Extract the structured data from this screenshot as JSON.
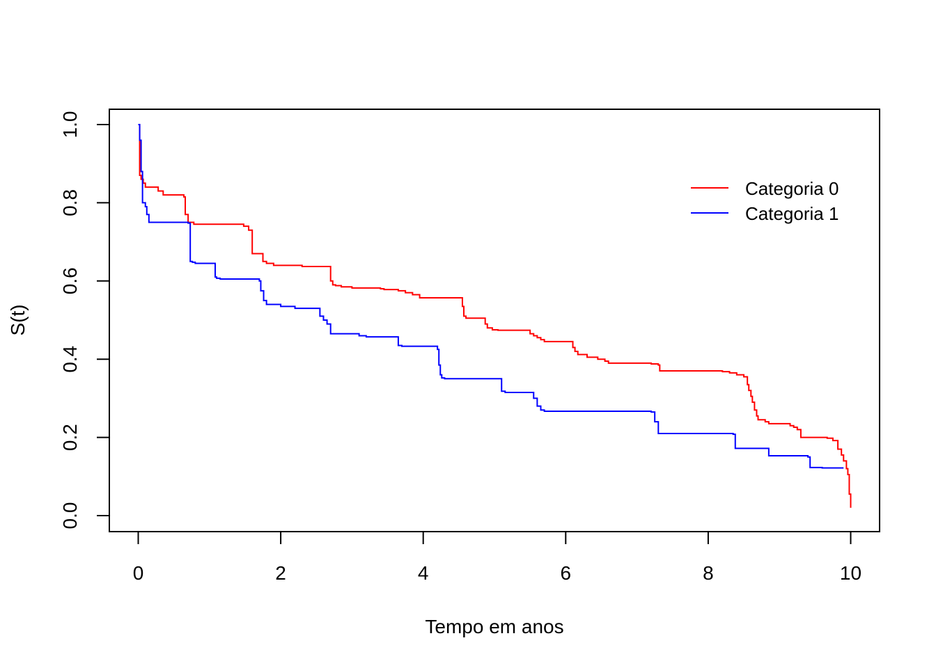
{
  "chart_data": {
    "type": "line",
    "step": true,
    "title": "",
    "xlabel": "Tempo em anos",
    "ylabel": "S(t)",
    "xlim": [
      0,
      10
    ],
    "ylim": [
      0,
      1
    ],
    "x_ticks": [
      0,
      2,
      4,
      6,
      8,
      10
    ],
    "x_tick_labels": [
      "0",
      "2",
      "4",
      "6",
      "8",
      "10"
    ],
    "y_ticks": [
      0,
      0.2,
      0.4,
      0.6,
      0.8,
      1
    ],
    "y_tick_labels": [
      "0.0",
      "0.2",
      "0.4",
      "0.6",
      "0.8",
      "1.0"
    ],
    "legend_position": "top-right",
    "series": [
      {
        "name": "Categoria 0",
        "color": "#ff0000",
        "x": [
          0,
          0.02,
          0.04,
          0.07,
          0.1,
          0.15,
          0.2,
          0.28,
          0.35,
          0.4,
          0.5,
          0.64,
          0.66,
          0.7,
          0.78,
          1.48,
          1.55,
          1.6,
          1.75,
          1.8,
          1.9,
          2.0,
          2.3,
          2.7,
          2.73,
          2.77,
          2.85,
          3.0,
          3.4,
          3.45,
          3.65,
          3.75,
          3.85,
          3.95,
          4.55,
          4.57,
          4.6,
          4.87,
          4.9,
          4.97,
          5.05,
          5.5,
          5.55,
          5.6,
          5.65,
          5.7,
          6.1,
          6.13,
          6.17,
          6.3,
          6.45,
          6.55,
          6.6,
          7.2,
          7.3,
          7.32,
          8.2,
          8.3,
          8.4,
          8.5,
          8.55,
          8.57,
          8.6,
          8.62,
          8.65,
          8.68,
          8.7,
          8.8,
          8.85,
          9.15,
          9.2,
          9.25,
          9.3,
          9.67,
          9.75,
          9.82,
          9.87,
          9.9,
          9.94,
          9.96,
          9.98
        ],
        "y": [
          1.0,
          0.87,
          0.86,
          0.85,
          0.84,
          0.84,
          0.84,
          0.83,
          0.82,
          0.82,
          0.82,
          0.815,
          0.77,
          0.75,
          0.745,
          0.74,
          0.73,
          0.67,
          0.65,
          0.645,
          0.64,
          0.64,
          0.637,
          0.6,
          0.59,
          0.588,
          0.585,
          0.582,
          0.58,
          0.578,
          0.575,
          0.57,
          0.565,
          0.557,
          0.535,
          0.51,
          0.505,
          0.49,
          0.48,
          0.475,
          0.474,
          0.465,
          0.46,
          0.455,
          0.45,
          0.445,
          0.43,
          0.42,
          0.412,
          0.405,
          0.4,
          0.395,
          0.39,
          0.388,
          0.385,
          0.37,
          0.368,
          0.365,
          0.36,
          0.355,
          0.335,
          0.32,
          0.305,
          0.29,
          0.27,
          0.255,
          0.245,
          0.24,
          0.235,
          0.23,
          0.226,
          0.22,
          0.2,
          0.198,
          0.192,
          0.17,
          0.155,
          0.14,
          0.12,
          0.105,
          0.055
        ],
        "x_end": 10.0,
        "y_end": 0.02
      },
      {
        "name": "Categoria 1",
        "color": "#0000ff",
        "x": [
          0,
          0.02,
          0.04,
          0.06,
          0.1,
          0.12,
          0.15,
          0.7,
          0.73,
          0.76,
          0.8,
          1.08,
          1.1,
          1.15,
          1.7,
          1.72,
          1.76,
          1.8,
          2.0,
          2.2,
          2.55,
          2.6,
          2.65,
          2.7,
          2.75,
          3.1,
          3.2,
          3.65,
          3.7,
          4.2,
          4.22,
          4.24,
          4.26,
          4.3,
          5.1,
          5.15,
          5.55,
          5.6,
          5.65,
          5.7,
          7.2,
          7.25,
          7.3,
          8.35,
          8.38,
          8.85,
          9.4,
          9.43,
          9.6,
          9.9
        ],
        "y": [
          1.0,
          0.96,
          0.88,
          0.8,
          0.79,
          0.77,
          0.75,
          0.748,
          0.65,
          0.648,
          0.645,
          0.61,
          0.607,
          0.605,
          0.6,
          0.575,
          0.55,
          0.54,
          0.535,
          0.53,
          0.51,
          0.5,
          0.49,
          0.465,
          0.465,
          0.46,
          0.457,
          0.435,
          0.433,
          0.425,
          0.385,
          0.36,
          0.352,
          0.35,
          0.318,
          0.315,
          0.3,
          0.28,
          0.27,
          0.267,
          0.265,
          0.24,
          0.21,
          0.208,
          0.172,
          0.153,
          0.15,
          0.123,
          0.122,
          0.122
        ],
        "x_end": 9.9,
        "y_end": 0.122
      }
    ]
  }
}
